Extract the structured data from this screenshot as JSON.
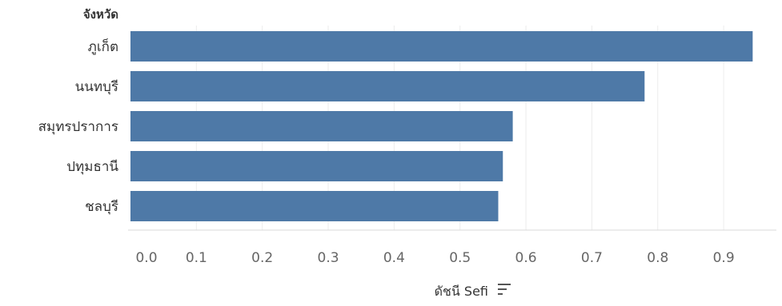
{
  "chart_data": {
    "type": "bar",
    "orientation": "horizontal",
    "row_header": "จังหวัด",
    "categories": [
      "ภูเก็ต",
      "นนทบุรี",
      "สมุทรปราการ",
      "ปทุมธานี",
      "ชลบุรี"
    ],
    "series": [
      {
        "values": [
          0.944,
          0.78,
          0.58,
          0.565,
          0.558
        ]
      }
    ],
    "xlabel": "ดัชนี Sefi",
    "xlim": [
      0,
      0.98
    ],
    "xticks": [
      "0.0",
      "0.1",
      "0.2",
      "0.3",
      "0.4",
      "0.5",
      "0.6",
      "0.7",
      "0.8",
      "0.9"
    ],
    "xtick_values": [
      0,
      0.1,
      0.2,
      0.3,
      0.4,
      0.5,
      0.6,
      0.7,
      0.8,
      0.9
    ],
    "grid": "vertical",
    "bar_color": "#4e79a7",
    "grid_color": "#ececec",
    "text_color": "#333333",
    "tick_color": "#666666",
    "sort_icon": "sort-descending-icon"
  }
}
